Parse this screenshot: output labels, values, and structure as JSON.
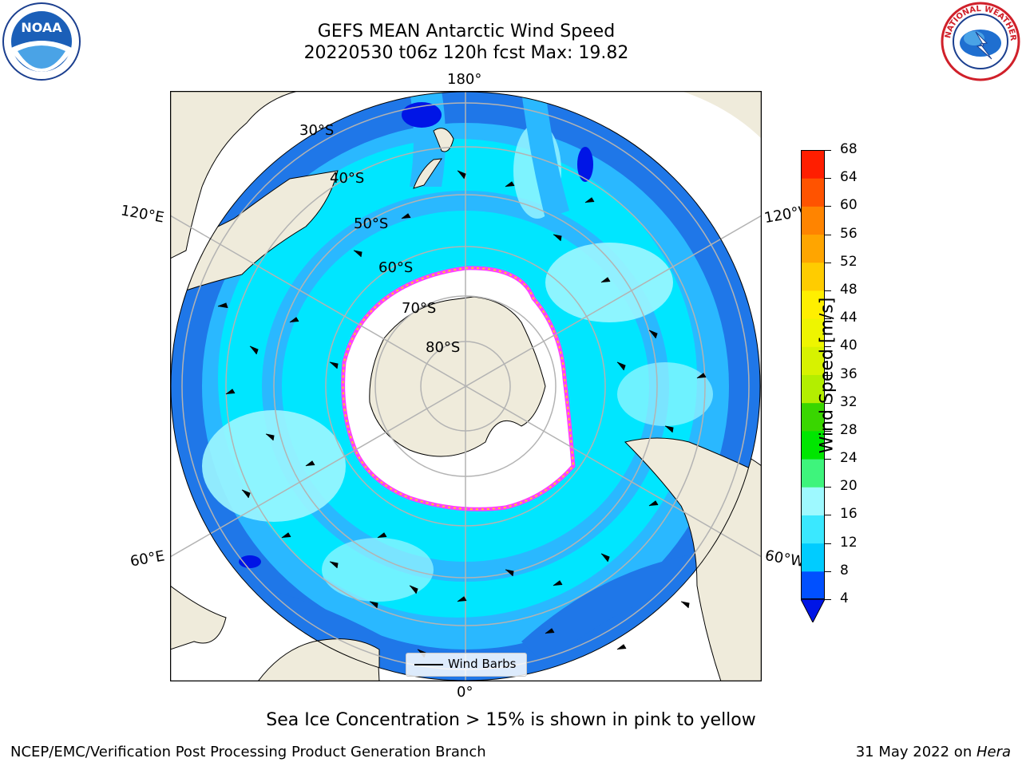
{
  "title_line1": "GEFS MEAN Antarctic Wind Speed",
  "title_line2": "20220530 t06z 120h fcst   Max: 19.82",
  "caption": "Sea Ice Concentration > 15% is shown in pink to yellow",
  "footer_left": "NCEP/EMC/Verification Post Processing Product Generation Branch",
  "footer_right_prefix": "31 May 2022 on ",
  "footer_right_host": "Hera",
  "legend_label": "Wind Barbs",
  "noaa_logo_text": "NOAA",
  "nws_logo_text": "NATIONAL WEATHER SERVICE",
  "longitude_labels": {
    "top": "180°",
    "bottom": "0°",
    "left_upper": "120°E",
    "left_lower": "60°E",
    "right_upper": "120°W",
    "right_lower": "60°W"
  },
  "latitude_labels": [
    "30°S",
    "40°S",
    "50°S",
    "60°S",
    "70°S",
    "80°S"
  ],
  "colorbar": {
    "title": "Wind Speed [m/s]",
    "ticks": [
      "4",
      "8",
      "12",
      "16",
      "20",
      "24",
      "28",
      "32",
      "36",
      "40",
      "44",
      "48",
      "52",
      "56",
      "60",
      "64",
      "68"
    ],
    "colors": [
      "#0050ff",
      "#00ccff",
      "#3ae8ff",
      "#9ef9ff",
      "#3ef47c",
      "#00e600",
      "#39d600",
      "#b3ee00",
      "#d7f200",
      "#eef500",
      "#ffef00",
      "#ffcc00",
      "#ffa500",
      "#ff8400",
      "#ff5300",
      "#ff1e00"
    ],
    "under_color": "#0015e6"
  },
  "colors": {
    "land": "#efebdb",
    "ocean_deep": "#1f77e8",
    "ocean_mid": "#2ab8ff",
    "ocean_cyan": "#00e6ff",
    "ocean_light": "#9cf6ff",
    "ice": "#ffffff",
    "ice_edge_pink": "#ff40ff",
    "ice_edge_yellow": "#ffcc22"
  }
}
